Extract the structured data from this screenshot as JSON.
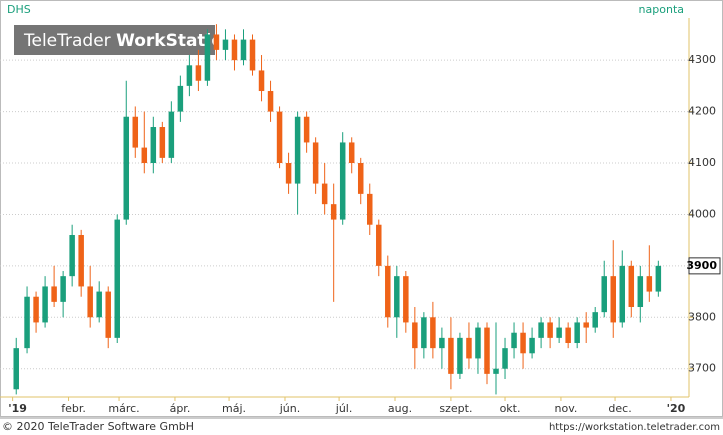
{
  "chart_data": {
    "type": "candlestick",
    "title": "DHS",
    "subtitle": "naponta",
    "watermark": [
      "TeleTrader",
      "WorkStation"
    ],
    "up_color": "#1a9f7c",
    "down_color": "#ef6318",
    "x": [
      2,
      8,
      13,
      18,
      23,
      28,
      33,
      38,
      43,
      48,
      53,
      58,
      63,
      68,
      73,
      78,
      83,
      88,
      93,
      98,
      103,
      108,
      113,
      118,
      123,
      128,
      133,
      138,
      143,
      148,
      153,
      158,
      163,
      168,
      173,
      178,
      183,
      188,
      193,
      198,
      203,
      208,
      213,
      218,
      223,
      228,
      233,
      238,
      243,
      248,
      253,
      258,
      263,
      268,
      273,
      278,
      283,
      288,
      293,
      298,
      303,
      308,
      313,
      318,
      323,
      328,
      333,
      338,
      343,
      348,
      353,
      358
    ],
    "open": [
      3660,
      3740,
      3840,
      3790,
      3860,
      3830,
      3880,
      3960,
      3860,
      3800,
      3850,
      3760,
      3990,
      4190,
      4130,
      4100,
      4170,
      4110,
      4200,
      4250,
      4290,
      4260,
      4350,
      4320,
      4340,
      4300,
      4340,
      4280,
      4240,
      4200,
      4100,
      4060,
      4190,
      4140,
      4060,
      4020,
      3990,
      4140,
      4100,
      4040,
      3980,
      3900,
      3800,
      3880,
      3790,
      3740,
      3800,
      3740,
      3760,
      3690,
      3760,
      3720,
      3780,
      3690,
      3700,
      3740,
      3770,
      3730,
      3760,
      3790,
      3760,
      3780,
      3750,
      3790,
      3780,
      3810,
      3880,
      3790,
      3900,
      3820,
      3880,
      3850
    ],
    "high": [
      3760,
      3860,
      3850,
      3880,
      3900,
      3890,
      3980,
      3970,
      3900,
      3870,
      3860,
      4000,
      4260,
      4210,
      4200,
      4190,
      4180,
      4220,
      4270,
      4310,
      4320,
      4360,
      4370,
      4360,
      4350,
      4360,
      4350,
      4310,
      4260,
      4210,
      4120,
      4200,
      4200,
      4150,
      4100,
      4060,
      4160,
      4150,
      4110,
      4060,
      3990,
      3920,
      3900,
      3890,
      3820,
      3810,
      3830,
      3780,
      3800,
      3770,
      3790,
      3790,
      3790,
      3790,
      3760,
      3790,
      3790,
      3780,
      3800,
      3800,
      3800,
      3790,
      3800,
      3810,
      3820,
      3910,
      3950,
      3930,
      3910,
      3900,
      3940,
      3910
    ],
    "low": [
      3650,
      3730,
      3770,
      3780,
      3820,
      3800,
      3860,
      3840,
      3780,
      3790,
      3740,
      3750,
      3980,
      4110,
      4080,
      4080,
      4100,
      4100,
      4180,
      4230,
      4240,
      4250,
      4300,
      4300,
      4280,
      4290,
      4270,
      4220,
      4180,
      4090,
      4040,
      4000,
      4120,
      4040,
      4000,
      3830,
      3980,
      4080,
      4020,
      3960,
      3880,
      3780,
      3760,
      3770,
      3700,
      3720,
      3720,
      3700,
      3660,
      3680,
      3700,
      3690,
      3670,
      3650,
      3680,
      3720,
      3700,
      3720,
      3740,
      3740,
      3750,
      3740,
      3740,
      3750,
      3770,
      3800,
      3760,
      3780,
      3800,
      3790,
      3830,
      3840
    ],
    "close": [
      3740,
      3840,
      3790,
      3860,
      3830,
      3880,
      3960,
      3860,
      3800,
      3850,
      3760,
      3990,
      4190,
      4130,
      4100,
      4170,
      4110,
      4200,
      4250,
      4290,
      4260,
      4350,
      4320,
      4340,
      4300,
      4340,
      4280,
      4240,
      4200,
      4100,
      4060,
      4190,
      4140,
      4060,
      4020,
      3990,
      4140,
      4100,
      4040,
      3980,
      3900,
      3800,
      3880,
      3790,
      3740,
      3800,
      3740,
      3760,
      3690,
      3760,
      3720,
      3780,
      3690,
      3700,
      3740,
      3770,
      3730,
      3760,
      3790,
      3760,
      3780,
      3750,
      3790,
      3780,
      3810,
      3880,
      3790,
      3900,
      3820,
      3880,
      3850,
      3900
    ],
    "xlim": [
      -7,
      375
    ],
    "xticks": [
      {
        "value": 0,
        "label": "'19"
      },
      {
        "value": 31,
        "label": "febr."
      },
      {
        "value": 59,
        "label": "márc."
      },
      {
        "value": 90,
        "label": "ápr."
      },
      {
        "value": 120,
        "label": "máj."
      },
      {
        "value": 151,
        "label": "jún."
      },
      {
        "value": 181,
        "label": "júl."
      },
      {
        "value": 212,
        "label": "aug."
      },
      {
        "value": 243,
        "label": "szept."
      },
      {
        "value": 273,
        "label": "okt."
      },
      {
        "value": 304,
        "label": "nov."
      },
      {
        "value": 334,
        "label": "dec."
      },
      {
        "value": 365,
        "label": "'20"
      }
    ],
    "ylim": [
      3645,
      4382
    ],
    "yticks": [
      3700,
      3800,
      3900,
      4000,
      4100,
      4200,
      4300
    ],
    "last_price": 3900,
    "grid": true
  },
  "footer": {
    "left": "© 2020 TeleTrader Software GmbH",
    "right": "https://workstation.teletrader.com"
  }
}
